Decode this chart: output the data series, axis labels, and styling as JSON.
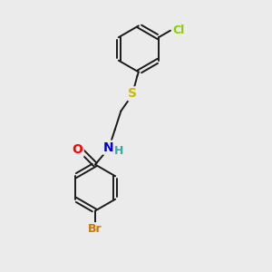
{
  "background_color": "#ebebeb",
  "bond_color": "#1a1a1a",
  "atom_colors": {
    "O": "#ff0000",
    "N": "#0000cc",
    "S": "#ccbb00",
    "Br": "#cc7700",
    "Cl": "#88cc00",
    "H": "#33aaaa",
    "C": "#1a1a1a"
  },
  "lw": 1.4,
  "figsize": [
    3.0,
    3.0
  ],
  "dpi": 100,
  "xlim": [
    0,
    10
  ],
  "ylim": [
    0,
    10
  ]
}
